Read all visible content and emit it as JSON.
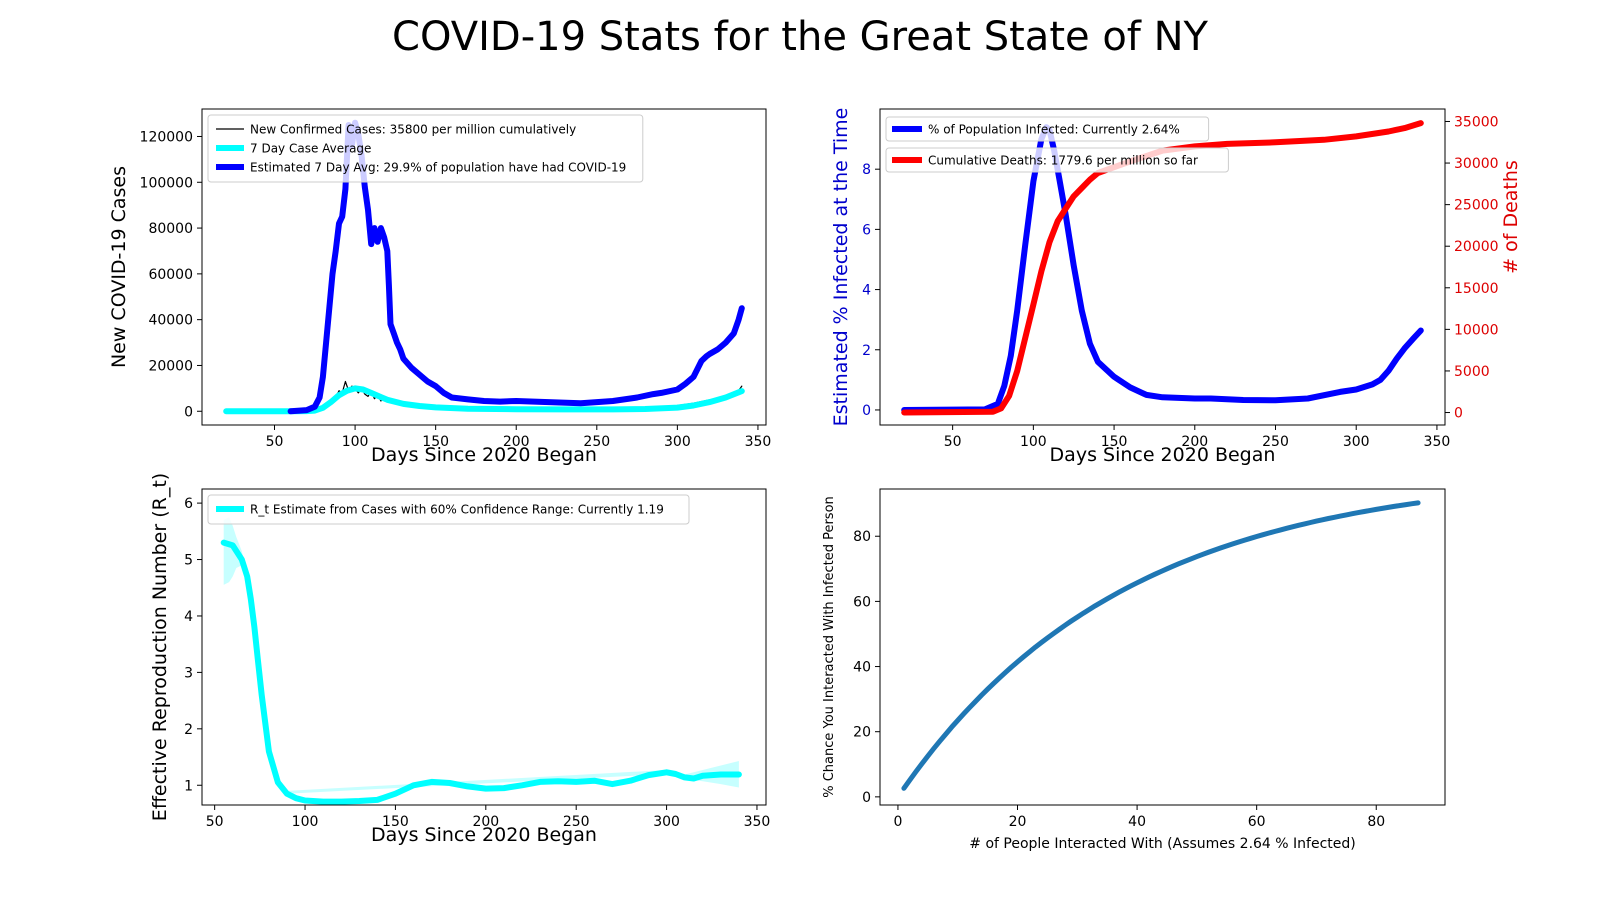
{
  "figure": {
    "title": "COVID-19 Stats for the Great State of NY"
  },
  "chart_data": [
    {
      "id": "cases",
      "type": "line",
      "title": "",
      "xlabel": "Days Since 2020 Began",
      "ylabel": "New COVID-19 Cases",
      "xlim": [
        5,
        355
      ],
      "ylim": [
        -6000,
        132000
      ],
      "xticks": [
        50,
        100,
        150,
        200,
        250,
        300,
        350
      ],
      "yticks": [
        0,
        20000,
        40000,
        60000,
        80000,
        100000,
        120000
      ],
      "grid": false,
      "legend": "top-left",
      "series": [
        {
          "name": "New Confirmed Cases: 35800 per million cumulatively",
          "color": "#000000",
          "x": [
            20,
            60,
            75,
            80,
            85,
            88,
            90,
            92,
            94,
            96,
            98,
            100,
            102,
            104,
            106,
            108,
            110,
            112,
            114,
            116,
            118,
            120,
            125,
            130,
            140,
            150,
            160,
            180,
            200,
            220,
            250,
            270,
            290,
            300,
            310,
            320,
            330,
            338,
            340
          ],
          "y": [
            0,
            0,
            100,
            1000,
            3000,
            6000,
            9000,
            8000,
            13000,
            9000,
            11000,
            10000,
            8000,
            10000,
            7500,
            6500,
            9000,
            5500,
            7000,
            4500,
            6500,
            4500,
            3500,
            2500,
            2000,
            1200,
            1000,
            800,
            700,
            700,
            800,
            1000,
            1600,
            2500,
            3500,
            5000,
            6500,
            9000,
            11000
          ]
        },
        {
          "name": "7 Day Case Average",
          "color": "#00ffff",
          "x": [
            20,
            60,
            70,
            75,
            80,
            85,
            90,
            95,
            100,
            105,
            110,
            115,
            120,
            130,
            140,
            150,
            170,
            200,
            230,
            260,
            280,
            300,
            310,
            320,
            330,
            340
          ],
          "y": [
            0,
            0,
            50,
            300,
            1500,
            4000,
            7000,
            9000,
            10000,
            9500,
            8000,
            6500,
            5000,
            3200,
            2300,
            1700,
            1100,
            900,
            800,
            800,
            1000,
            1600,
            2500,
            4000,
            6000,
            8800
          ]
        },
        {
          "name": "Estimated 7 Day Avg: 29.9% of population have had COVID-19",
          "color": "#0000ff",
          "x": [
            60,
            70,
            75,
            78,
            80,
            82,
            84,
            86,
            88,
            90,
            92,
            94,
            96,
            98,
            100,
            102,
            104,
            106,
            108,
            110,
            112,
            114,
            116,
            118,
            120,
            121,
            122,
            124,
            126,
            128,
            130,
            135,
            140,
            145,
            150,
            155,
            160,
            170,
            180,
            190,
            200,
            220,
            240,
            260,
            275,
            285,
            290,
            300,
            305,
            310,
            315,
            318,
            320,
            325,
            330,
            335,
            338,
            340
          ],
          "y": [
            0,
            500,
            2000,
            6000,
            15000,
            30000,
            45000,
            60000,
            70000,
            82000,
            85000,
            97000,
            125000,
            116000,
            126000,
            121000,
            112000,
            98000,
            88000,
            73000,
            80000,
            74000,
            80000,
            76000,
            70000,
            55000,
            38000,
            34000,
            30000,
            27000,
            23000,
            19000,
            16000,
            13000,
            11000,
            8000,
            6000,
            5200,
            4500,
            4200,
            4500,
            4000,
            3500,
            4500,
            6000,
            7500,
            8000,
            9500,
            12000,
            15000,
            22000,
            24000,
            25000,
            27000,
            30000,
            34000,
            40000,
            45000
          ]
        }
      ]
    },
    {
      "id": "infected_deaths",
      "type": "line",
      "title": "",
      "xlabel": "Days Since 2020 Began",
      "ylabel": "Estimated % Infected at the Time",
      "ylabel_right": "# of Deaths",
      "xlim": [
        5,
        355
      ],
      "ylim": [
        -0.5,
        10.0
      ],
      "ylim_right": [
        -1500,
        36500
      ],
      "xticks": [
        50,
        100,
        150,
        200,
        250,
        300,
        350
      ],
      "yticks": [
        0,
        2,
        4,
        6,
        8
      ],
      "yticks_right": [
        0,
        5000,
        10000,
        15000,
        20000,
        25000,
        30000,
        35000
      ],
      "grid": false,
      "legend": "top-left",
      "series": [
        {
          "name": "% of Population Infected: Currently 2.64%",
          "color": "#0000ff",
          "axis": "left",
          "x": [
            20,
            70,
            78,
            82,
            86,
            90,
            95,
            100,
            105,
            108,
            110,
            113,
            116,
            120,
            125,
            130,
            135,
            140,
            150,
            160,
            170,
            180,
            200,
            210,
            230,
            250,
            270,
            290,
            300,
            310,
            315,
            320,
            325,
            330,
            335,
            340
          ],
          "y": [
            0,
            0.02,
            0.2,
            0.8,
            1.8,
            3.3,
            5.5,
            7.6,
            9.0,
            9.4,
            9.3,
            8.6,
            7.7,
            6.5,
            4.8,
            3.3,
            2.2,
            1.6,
            1.1,
            0.75,
            0.5,
            0.42,
            0.38,
            0.38,
            0.33,
            0.32,
            0.38,
            0.6,
            0.68,
            0.85,
            1.0,
            1.3,
            1.7,
            2.05,
            2.35,
            2.64
          ]
        },
        {
          "name": "Cumulative Deaths: 1779.6 per million so far",
          "color": "#ff0000",
          "axis": "right",
          "x": [
            20,
            75,
            80,
            85,
            90,
            95,
            100,
            105,
            110,
            115,
            120,
            125,
            130,
            135,
            140,
            150,
            160,
            180,
            200,
            220,
            250,
            280,
            300,
            320,
            330,
            340
          ],
          "y": [
            0,
            100,
            500,
            2000,
            5000,
            9000,
            13000,
            17000,
            20500,
            23000,
            24500,
            26000,
            27000,
            28000,
            28800,
            29500,
            30200,
            31500,
            32000,
            32300,
            32500,
            32800,
            33200,
            33800,
            34200,
            34800
          ]
        }
      ]
    },
    {
      "id": "rt",
      "type": "line",
      "title": "",
      "xlabel": "Days Since 2020 Began",
      "ylabel": "Effective Reproduction Number (R_t)",
      "xlim": [
        43,
        355
      ],
      "ylim": [
        0.65,
        6.25
      ],
      "xticks": [
        50,
        100,
        150,
        200,
        250,
        300,
        350
      ],
      "yticks": [
        1,
        2,
        3,
        4,
        5,
        6
      ],
      "grid": false,
      "legend": "top-left",
      "series": [
        {
          "name": "R_t Estimate from Cases with 60% Confidence Range: Currently 1.19",
          "color": "#00ffff",
          "x": [
            55,
            60,
            65,
            68,
            70,
            72,
            74,
            76,
            78,
            80,
            85,
            90,
            95,
            100,
            110,
            120,
            130,
            140,
            150,
            160,
            170,
            180,
            190,
            200,
            210,
            220,
            230,
            240,
            250,
            260,
            270,
            280,
            290,
            300,
            305,
            310,
            315,
            320,
            330,
            340
          ],
          "y": [
            5.3,
            5.25,
            5.0,
            4.7,
            4.3,
            3.8,
            3.2,
            2.6,
            2.1,
            1.6,
            1.05,
            0.85,
            0.77,
            0.73,
            0.71,
            0.71,
            0.72,
            0.74,
            0.85,
            1.0,
            1.06,
            1.04,
            0.98,
            0.94,
            0.95,
            1.0,
            1.06,
            1.07,
            1.06,
            1.08,
            1.02,
            1.08,
            1.18,
            1.23,
            1.2,
            1.14,
            1.12,
            1.17,
            1.19,
            1.19
          ],
          "band_x": [
            55,
            58,
            60,
            62,
            65,
            70,
            75,
            80,
            85,
            90,
            300,
            310,
            320,
            330,
            340
          ],
          "band_low": [
            4.55,
            4.6,
            4.7,
            4.85,
            4.9,
            4.25,
            2.95,
            1.55,
            1.05,
            0.85,
            1.2,
            1.11,
            1.07,
            1.02,
            0.96
          ],
          "band_high": [
            5.7,
            5.75,
            5.6,
            5.4,
            5.15,
            4.45,
            3.2,
            1.7,
            1.1,
            0.9,
            1.27,
            1.19,
            1.27,
            1.35,
            1.43
          ]
        }
      ]
    },
    {
      "id": "chance",
      "type": "line",
      "title": "",
      "xlabel": "# of People Interacted With (Assumes 2.64 % Infected)",
      "ylabel": "% Chance You Interacted With Infected Person",
      "xlim": [
        -3,
        91.5
      ],
      "ylim": [
        -2.5,
        94.5
      ],
      "xticks": [
        0,
        20,
        40,
        60,
        80
      ],
      "yticks": [
        0,
        20,
        40,
        60,
        80
      ],
      "grid": false,
      "legend": "none",
      "infected_fraction": 0.0264,
      "x_range": [
        1,
        87
      ],
      "series": [
        {
          "name": "",
          "color": "#1f77b4"
        }
      ]
    }
  ]
}
